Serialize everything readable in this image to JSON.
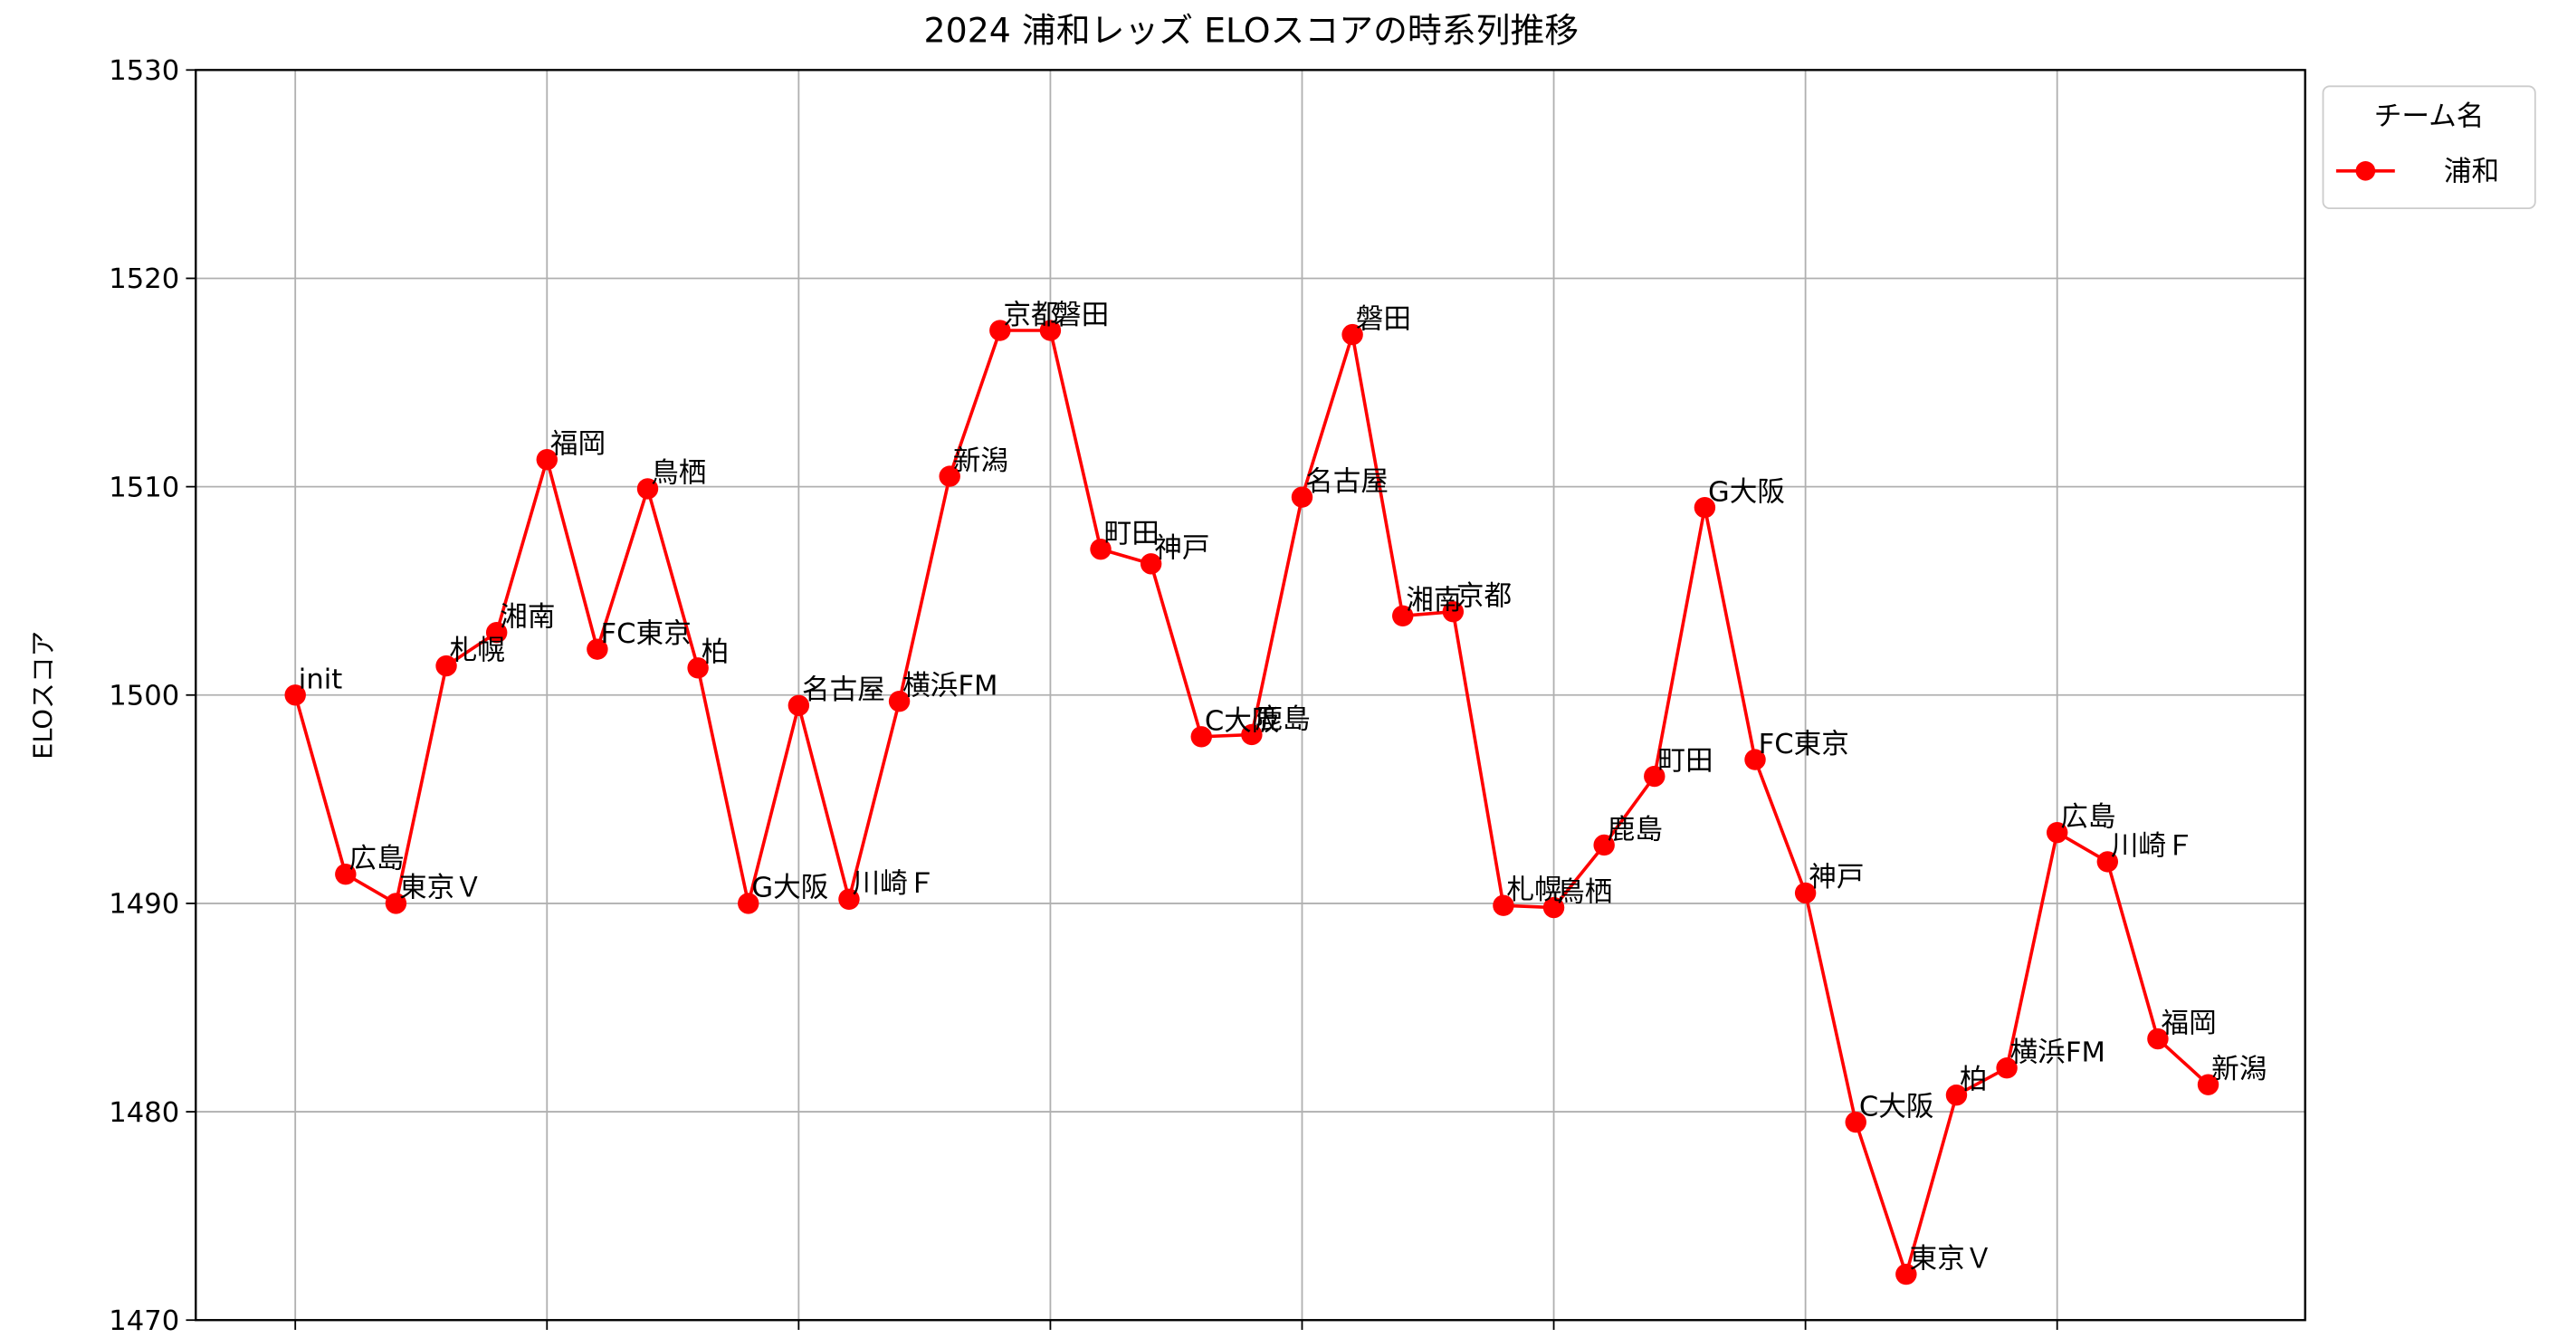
{
  "chart_data": {
    "type": "line",
    "title": "2024 浦和レッズ ELOスコアの時系列推移",
    "xlabel": "",
    "ylabel": "ELOスコア",
    "ylim": [
      1470,
      1530
    ],
    "yticks": [
      1470,
      1480,
      1490,
      1500,
      1510,
      1520,
      1530
    ],
    "xlim": [
      -2,
      40
    ],
    "xticks": [
      0,
      5,
      10,
      15,
      20,
      25,
      30,
      35
    ],
    "grid": true,
    "legend": {
      "title": "チーム名",
      "position": "upper right outside",
      "entries": [
        "浦和"
      ]
    },
    "series": [
      {
        "name": "浦和",
        "color": "#ff0000",
        "marker": "circle",
        "x": [
          0,
          1,
          2,
          3,
          4,
          5,
          6,
          7,
          8,
          9,
          10,
          11,
          12,
          13,
          14,
          15,
          16,
          17,
          18,
          19,
          20,
          21,
          22,
          23,
          24,
          25,
          26,
          27,
          28,
          29,
          30,
          31,
          32,
          33,
          34,
          35,
          36,
          37,
          38
        ],
        "labels": [
          "init",
          "広島",
          "東京Ｖ",
          "札幌",
          "湘南",
          "福岡",
          "FC東京",
          "鳥栖",
          "柏",
          "G大阪",
          "名古屋",
          "川崎Ｆ",
          "横浜FM",
          "新潟",
          "京都",
          "磐田",
          "町田",
          "神戸",
          "C大阪",
          "鹿島",
          "名古屋",
          "磐田",
          "湘南",
          "京都",
          "札幌",
          "鳥栖",
          "鹿島",
          "町田",
          "G大阪",
          "FC東京",
          "神戸",
          "C大阪",
          "東京Ｖ",
          "柏",
          "横浜FM",
          "広島",
          "川崎Ｆ",
          "福岡",
          "新潟"
        ],
        "values": [
          1500.0,
          1491.4,
          1490.0,
          1501.4,
          1503.0,
          1511.3,
          1502.2,
          1509.9,
          1501.3,
          1490.0,
          1499.5,
          1490.2,
          1499.7,
          1510.5,
          1517.5,
          1517.5,
          1507.0,
          1506.3,
          1498.0,
          1498.1,
          1509.5,
          1517.3,
          1503.8,
          1504.0,
          1489.9,
          1489.8,
          1492.8,
          1496.1,
          1509.0,
          1496.9,
          1490.5,
          1479.5,
          1472.2,
          1480.8,
          1482.1,
          1493.4,
          1492.0,
          1483.5,
          1481.3
        ]
      }
    ]
  }
}
